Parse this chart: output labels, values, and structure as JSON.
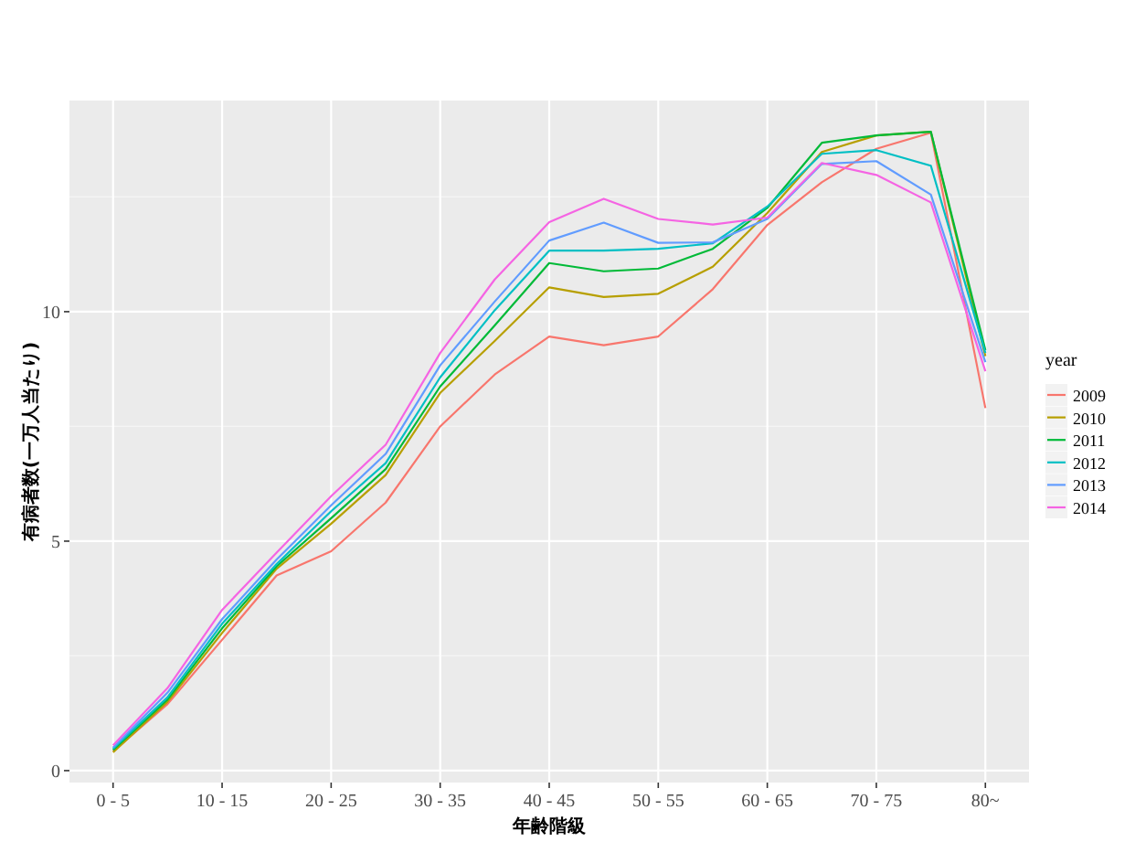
{
  "chart_data": {
    "type": "line",
    "xlabel": "年齢階級",
    "ylabel": "有病者数(一万人当たり)",
    "legend_title": "year",
    "legend": "right",
    "grid": true,
    "categories": [
      "0 - 5",
      null,
      "10 - 15",
      null,
      "20 - 25",
      null,
      "30 - 35",
      null,
      "40 - 45",
      null,
      "50 - 55",
      null,
      "60 - 65",
      null,
      "70 - 75",
      null,
      "80~"
    ],
    "ylim": [
      -0.26,
      14.6
    ],
    "yticks": [
      0,
      5,
      10
    ],
    "series": [
      {
        "name": "2009",
        "color": "#f8766d",
        "values": [
          0.42,
          1.45,
          2.85,
          4.25,
          4.78,
          5.84,
          7.5,
          8.63,
          9.46,
          9.27,
          9.46,
          10.49,
          11.89,
          12.82,
          13.55,
          13.9,
          7.9
        ]
      },
      {
        "name": "2010",
        "color": "#b79f00",
        "values": [
          0.4,
          1.5,
          3.0,
          4.4,
          5.38,
          6.44,
          8.23,
          9.36,
          10.53,
          10.32,
          10.39,
          10.98,
          12.15,
          13.48,
          13.84,
          13.92,
          9.03
        ]
      },
      {
        "name": "2011",
        "color": "#00ba38",
        "values": [
          0.45,
          1.55,
          3.1,
          4.45,
          5.5,
          6.57,
          8.37,
          9.7,
          11.06,
          10.88,
          10.94,
          11.37,
          12.26,
          13.68,
          13.84,
          13.92,
          9.16
        ]
      },
      {
        "name": "2012",
        "color": "#00bfc4",
        "values": [
          0.48,
          1.6,
          3.2,
          4.5,
          5.65,
          6.7,
          8.57,
          10.03,
          11.33,
          11.33,
          11.37,
          11.49,
          12.29,
          13.44,
          13.52,
          13.18,
          9.1
        ]
      },
      {
        "name": "2013",
        "color": "#619cff",
        "values": [
          0.5,
          1.7,
          3.3,
          4.6,
          5.78,
          6.9,
          8.83,
          10.22,
          11.55,
          11.94,
          11.5,
          11.51,
          12.02,
          13.22,
          13.28,
          12.55,
          8.9
        ]
      },
      {
        "name": "2014",
        "color": "#f564e3",
        "values": [
          0.55,
          1.8,
          3.5,
          4.75,
          5.98,
          7.1,
          9.1,
          10.7,
          11.95,
          12.46,
          12.02,
          11.9,
          12.05,
          13.24,
          12.98,
          12.38,
          8.7
        ]
      }
    ]
  }
}
